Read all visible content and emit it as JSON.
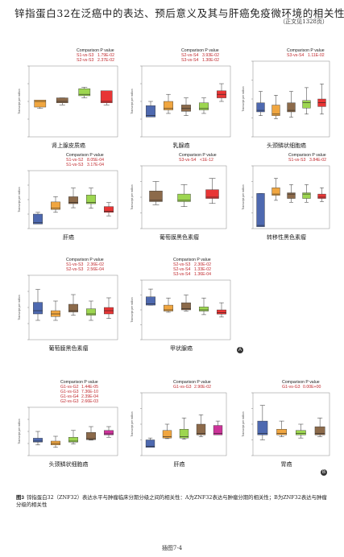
{
  "header": {
    "title": "锌指蛋白32在泛癌中的表达、预后意义及其与肝癌免疫微环境的相关性",
    "subtitle": "（正文见1328页）"
  },
  "figure": {
    "caption_num": "图3",
    "caption_text": "锌指蛋白32（ZNF32）表达水平与肿瘤临床分期分级之间的相关性：A为ZNF32表达与肿瘤分期的相关性；B为ZNF32表达与肿瘤分级的相关性",
    "page_label": "插图7-4",
    "label_a": "A",
    "label_b": "B",
    "legend_header": [
      "Comparison",
      "P value"
    ],
    "ylabel": "Transcript per million"
  },
  "panels": [
    {
      "title": "肾上腺皮质癌",
      "cmp": [
        [
          "S1-vs-S3",
          "1.79E-02"
        ],
        [
          "S2-vs-S3",
          "2.37E-02"
        ]
      ]
    },
    {
      "title": "乳腺癌",
      "cmp": [
        [
          "S2-vs-S4",
          "3.93E-02"
        ],
        [
          "S3-vs-S4",
          "1.30E-02"
        ]
      ]
    },
    {
      "title": "头颈鳞状细胞癌",
      "cmp": [
        [
          "S3-vs-S4",
          "1.11E-02"
        ]
      ]
    },
    {
      "title": "肝癌",
      "cmp": [
        [
          "S1-vs-S2",
          "8.05E-04"
        ],
        [
          "S1-vs-S3",
          "3.17E-04"
        ]
      ]
    },
    {
      "title": "葡萄膜黑色素瘤",
      "cmp": [
        [
          "S3-vs-S4",
          "<1E-12"
        ]
      ]
    },
    {
      "title": "转移性黑色素瘤",
      "cmp": [
        [
          "S1-vs-S3",
          "3.84E-02"
        ]
      ]
    },
    {
      "title": "葡萄膜黑色素瘤",
      "cmp": [
        [
          "S1-vs-S3",
          "2.36E-02"
        ],
        [
          "S2-vs-S3",
          "2.56E-04"
        ]
      ]
    },
    {
      "title": "甲状腺癌",
      "cmp": [
        [
          "S2-vs-S3",
          "2.30E-02"
        ],
        [
          "S2-vs-S4",
          "1.33E-02"
        ],
        [
          "S3-vs-S4",
          "1.36E-04"
        ]
      ]
    },
    {
      "title": "头颈鳞状细胞癌",
      "cmp": [
        [
          "G1-vs-G2",
          "1.44E-05"
        ],
        [
          "G1-vs-G3",
          "7.36E-10"
        ],
        [
          "G1-vs-G4",
          "2.39E-04"
        ],
        [
          "G2-vs-G3",
          "2.66E-03"
        ]
      ]
    },
    {
      "title": "肝癌",
      "cmp": [
        [
          "G1-vs-G3",
          "2.90E-02"
        ]
      ]
    },
    {
      "title": "胃癌",
      "cmp": [
        [
          "G1-vs-G3",
          "0.00E+00"
        ]
      ]
    }
  ]
}
